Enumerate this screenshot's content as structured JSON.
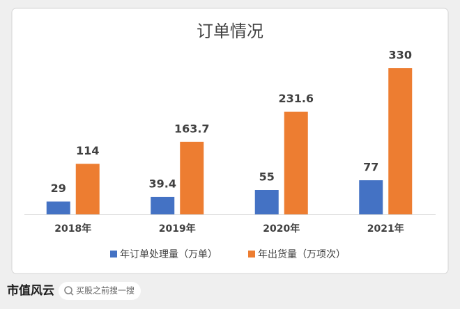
{
  "chart_data": {
    "type": "bar",
    "title": "订单情况",
    "categories": [
      "2018年",
      "2019年",
      "2020年",
      "2021年"
    ],
    "series": [
      {
        "name": "年订单处理量（万单）",
        "color": "#4472c4",
        "values": [
          29,
          39.4,
          55,
          77
        ]
      },
      {
        "name": "年出货量（万项次）",
        "color": "#ed7d31",
        "values": [
          114,
          163.7,
          231.6,
          330
        ]
      }
    ],
    "legend": "bottom"
  },
  "footer": {
    "brand": "市值风云",
    "search": "买股之前搜一搜"
  }
}
